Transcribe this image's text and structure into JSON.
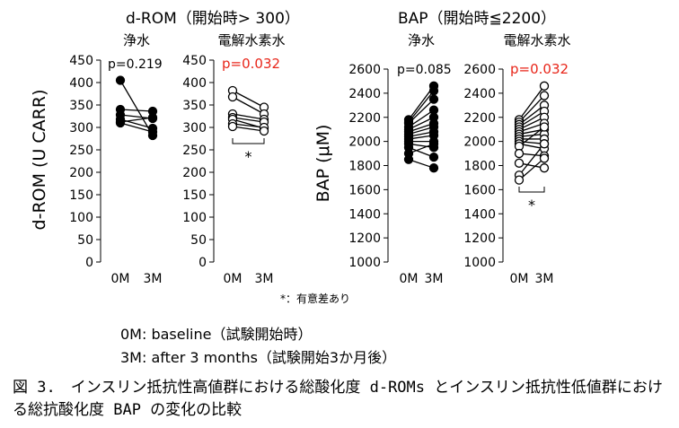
{
  "chart_data": [
    {
      "type": "line",
      "panel_title": "浄水",
      "ylabel": "d-ROM (U CARR)",
      "ylim": [
        0,
        450
      ],
      "yticks": [
        0,
        50,
        100,
        150,
        200,
        250,
        300,
        350,
        400,
        450
      ],
      "categories": [
        "0M",
        "3M"
      ],
      "pvalue": "p=0.219",
      "pvalue_color": "#000000",
      "marker": "filled",
      "significance": "",
      "pairs": [
        [
          405,
          282
        ],
        [
          340,
          336
        ],
        [
          328,
          320
        ],
        [
          318,
          298
        ],
        [
          312,
          322
        ],
        [
          310,
          290
        ]
      ]
    },
    {
      "type": "line",
      "panel_title": "電解水素水",
      "ylabel": "",
      "ylim": [
        0,
        450
      ],
      "yticks": [
        0,
        50,
        100,
        150,
        200,
        250,
        300,
        350,
        400,
        450
      ],
      "categories": [
        "0M",
        "3M"
      ],
      "pvalue": "p=0.032",
      "pvalue_color": "#e8261a",
      "marker": "open",
      "significance": "*",
      "pairs": [
        [
          382,
          345
        ],
        [
          368,
          330
        ],
        [
          330,
          318
        ],
        [
          322,
          312
        ],
        [
          318,
          298
        ],
        [
          308,
          300
        ],
        [
          302,
          292
        ]
      ]
    },
    {
      "type": "line",
      "panel_title": "浄水",
      "ylabel": "BAP (μM)",
      "ylim": [
        1000,
        2600
      ],
      "yticks": [
        1000,
        1200,
        1400,
        1600,
        1800,
        2000,
        2200,
        2400,
        2600
      ],
      "categories": [
        "0M",
        "3M"
      ],
      "pvalue": "p=0.085",
      "pvalue_color": "#000000",
      "marker": "filled",
      "significance": "",
      "pairs": [
        [
          2180,
          2460
        ],
        [
          2160,
          2420
        ],
        [
          2150,
          2350
        ],
        [
          2120,
          2260
        ],
        [
          2100,
          2200
        ],
        [
          2080,
          2150
        ],
        [
          2060,
          2120
        ],
        [
          2040,
          2080
        ],
        [
          2020,
          2050
        ],
        [
          2000,
          2000
        ],
        [
          1980,
          1950
        ],
        [
          1950,
          1870
        ],
        [
          1900,
          1980
        ],
        [
          1850,
          1780
        ]
      ]
    },
    {
      "type": "line",
      "panel_title": "電解水素水",
      "ylabel": "",
      "ylim": [
        1000,
        2600
      ],
      "yticks": [
        1000,
        1200,
        1400,
        1600,
        1800,
        2000,
        2200,
        2400,
        2600
      ],
      "categories": [
        "0M",
        "3M"
      ],
      "pvalue": "p=0.032",
      "pvalue_color": "#e8261a",
      "marker": "open",
      "significance": "*",
      "pairs": [
        [
          2180,
          2460
        ],
        [
          2160,
          2380
        ],
        [
          2140,
          2300
        ],
        [
          2120,
          2250
        ],
        [
          2100,
          2200
        ],
        [
          2080,
          2150
        ],
        [
          2060,
          2100
        ],
        [
          2040,
          2060
        ],
        [
          2020,
          2020
        ],
        [
          2000,
          1980
        ],
        [
          1980,
          1940
        ],
        [
          1960,
          2120
        ],
        [
          1900,
          1880
        ],
        [
          1820,
          1780
        ],
        [
          1720,
          1980
        ],
        [
          1680,
          1860
        ]
      ]
    }
  ],
  "header_drom": "d-ROM（開始時> 300）",
  "header_bap": "BAP（開始時≦2200）",
  "footnote": "*：有意差あり",
  "legend_0m": "0M: baseline（試験開始時）",
  "legend_3m": "3M: after 3 months（試験開始3か月後）",
  "caption": "図 3.　インスリン抵抗性高値群における総酸化度 d-ROMs とインスリン抵抗性低値群における総抗酸化度 BAP の変化の比較"
}
